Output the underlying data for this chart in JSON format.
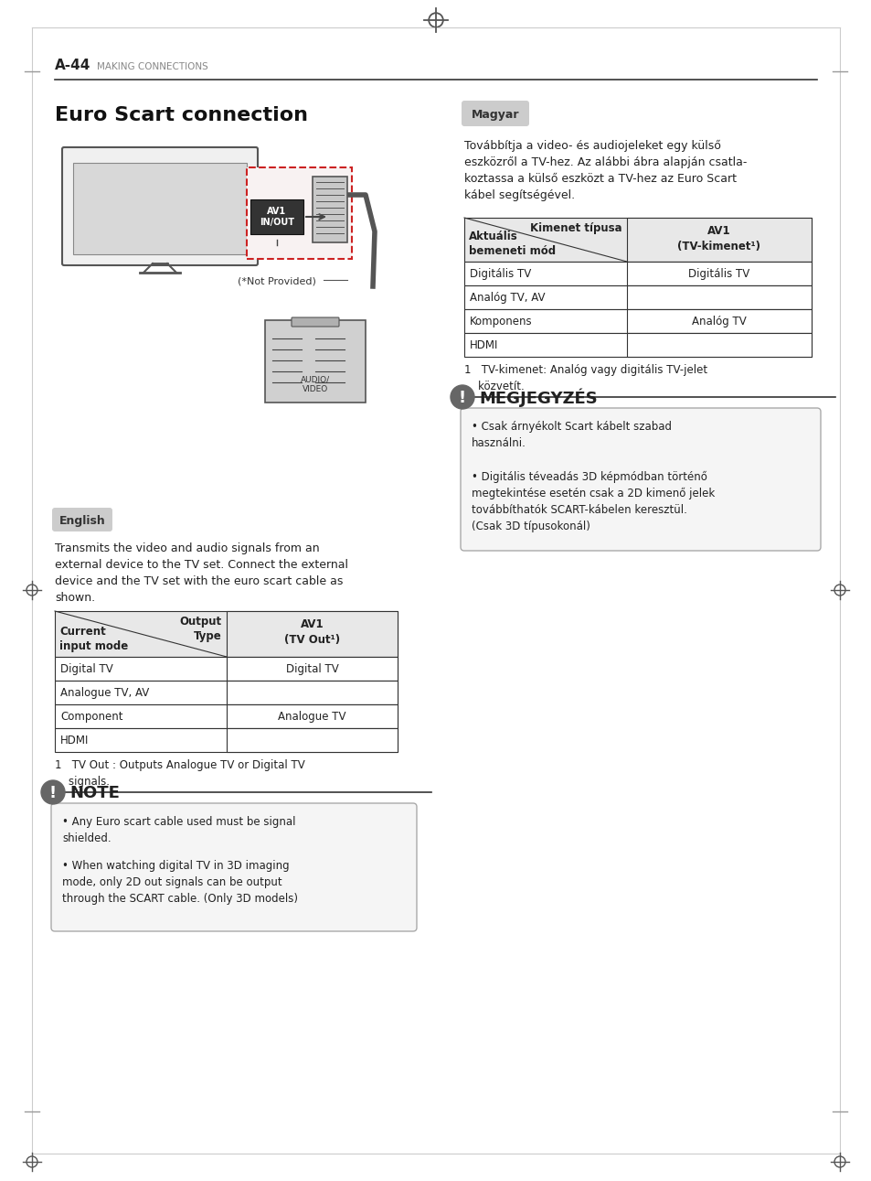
{
  "page_bg": "#ffffff",
  "header_text": "A-44",
  "header_subtext": "MAKING CONNECTIONS",
  "title": "Euro Scart connection",
  "magyar_label": "Magyar",
  "english_label": "English",
  "english_para": "Transmits the video and audio signals from an\nexternal device to the TV set. Connect the external\ndevice and the TV set with the euro scart cable as\nshown.",
  "english_table_header_col1": "Current\ninput mode",
  "english_table_header_col2": "Output\nType",
  "english_table_header_col3": "AV1\n(TV Out¹)",
  "english_table_rows": [
    [
      "Digital TV",
      "Digital TV"
    ],
    [
      "Analogue TV, AV",
      ""
    ],
    [
      "Component",
      "Analogue TV"
    ],
    [
      "HDMI",
      ""
    ]
  ],
  "english_footnote": "1   TV Out : Outputs Analogue TV or Digital TV\n    signals.",
  "note_title": "NOTE",
  "note_bullets": [
    "Any Euro scart cable used must be signal\nshielded.",
    "When watching digital TV in 3D imaging\nmode, only 2D out signals can be output\nthrough the SCART cable. (Only 3D models)"
  ],
  "magyar_para": "Továbbítja a video- és audiojeleket egy külső\neszközről a TV-hez. Az alábbi ábra alapján csatla-\nkoztassa a külső eszközt a TV-hez az Euro Scart\nkábel segítségével.",
  "magyar_table_header_col1": "Aktuális\nbemeneti mód",
  "magyar_table_header_col2": "Kimenet típusa",
  "magyar_table_header_col3": "AV1\n(TV-kimenet¹)",
  "magyar_table_rows": [
    [
      "Digitális TV",
      "Digitális TV"
    ],
    [
      "Analóg TV, AV",
      ""
    ],
    [
      "Komponens",
      "Analóg TV"
    ],
    [
      "HDMI",
      ""
    ]
  ],
  "magyar_footnote": "1   TV-kimenet: Analóg vagy digitális TV-jelet\n    közvetít.",
  "megjegyzes_title": "MEGJEGYZÉS",
  "megjegyzes_bullets": [
    "Csak árnyékolt Scart kábelt szabad\nhasználni.",
    "Digitális téveadás 3D képmódban történő\nmegtekintése esetén csak a 2D kimenő jelek\ntovábbíthatók SCART-kábelen keresztül.\n(Csak 3D típusokonál)"
  ],
  "crosshair_color": "#555555",
  "table_header_bg": "#e8e8e8",
  "table_border_color": "#333333",
  "note_bg": "#f0f0f0",
  "note_border_color": "#aaaaaa"
}
